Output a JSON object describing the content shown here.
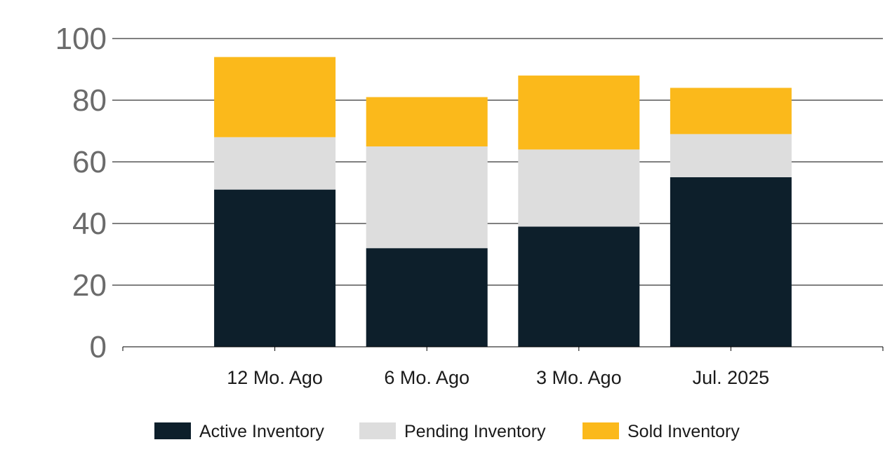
{
  "chart_data": {
    "type": "bar",
    "stacked": true,
    "categories": [
      "12 Mo. Ago",
      "6 Mo. Ago",
      "3 Mo. Ago",
      "Jul. 2025"
    ],
    "series": [
      {
        "name": "Active Inventory",
        "color": "#0d1f2b",
        "values": [
          51,
          32,
          39,
          55
        ]
      },
      {
        "name": "Pending Inventory",
        "color": "#dddddd",
        "values": [
          17,
          33,
          25,
          14
        ]
      },
      {
        "name": "Sold Inventory",
        "color": "#fbb91b",
        "values": [
          26,
          16,
          24,
          15
        ]
      }
    ],
    "ylim": [
      0,
      100
    ],
    "yticks": [
      0,
      20,
      40,
      60,
      80,
      100
    ],
    "grid": true,
    "legend_position": "bottom"
  }
}
